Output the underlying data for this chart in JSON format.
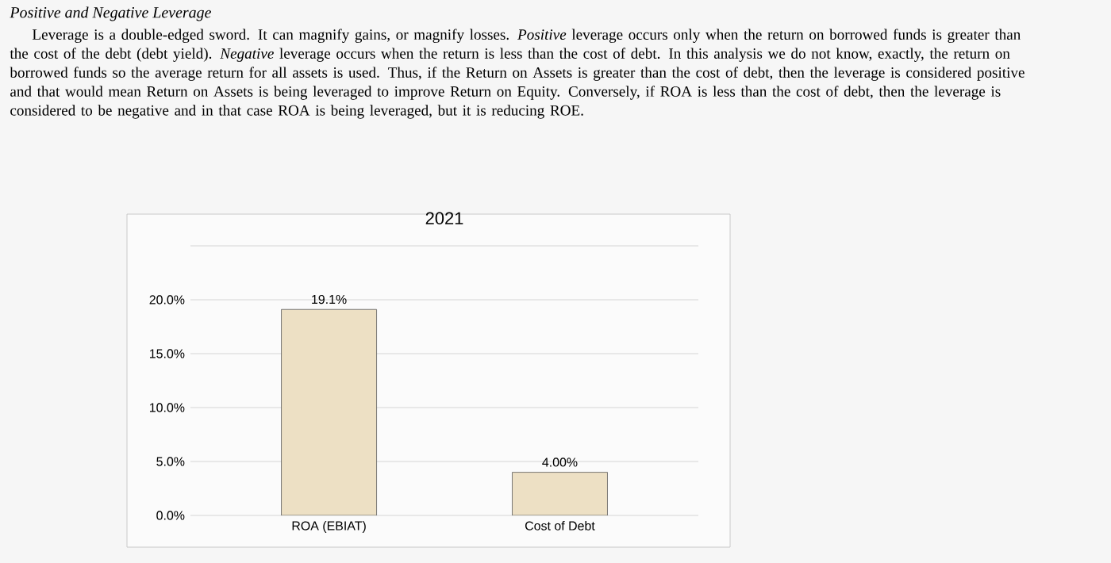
{
  "chart_data": {
    "type": "bar",
    "title": "2021",
    "annotations": [
      "Positive and Negative Leverage",
      "Leverage is a double-edged sword.  It can magnify gains, or magnify losses.  *Positive* leverage occurs only when the return on borrowed funds is greater than the cost of the debt (debt yield).  *Negative* leverage occurs when the return is less than the cost of debt.  In this analysis we do not know, exactly, the return on borrowed funds so the average return for all assets is used.  Thus, if the Return on Assets is greater than the cost of debt, then the leverage is considered positive and that would mean Return on Assets is being leveraged to improve Return on Equity.  Conversely, if ROA is less than the cost of debt, then the leverage is considered to be negative and in that case ROA is being leveraged, but it is reducing ROE."
    ],
    "categories": [
      "ROA (EBIAT)",
      "Cost of Debt"
    ],
    "values": [
      19.1,
      4.0
    ],
    "value_labels": [
      "19.1%",
      "4.00%"
    ],
    "color": "#ede0c4",
    "ylim": [
      0,
      25
    ],
    "yticks": [
      {
        "value": 0,
        "label": "0.0%"
      },
      {
        "value": 5,
        "label": "5.0%"
      },
      {
        "value": 10,
        "label": "10.0%"
      },
      {
        "value": 15,
        "label": "15.0%"
      },
      {
        "value": 20,
        "label": "20.0%"
      },
      {
        "value": 25,
        "label": null
      }
    ],
    "grid": "y"
  }
}
